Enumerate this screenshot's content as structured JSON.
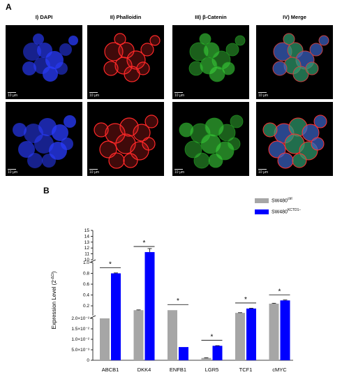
{
  "figure": {
    "panel_a_label": "A",
    "panel_b_label": "B",
    "columns": [
      {
        "header": "I) DAPI",
        "color": "#2a3cff"
      },
      {
        "header": "II) Phalloidin",
        "color": "#ff2828"
      },
      {
        "header": "III) β-Catenin",
        "color": "#3cd23c"
      },
      {
        "header": "IV) Merge",
        "color": "#46a0a0"
      }
    ],
    "scale_bar_label": "10 µm"
  },
  "chart_data": {
    "type": "bar",
    "ylabel_main": "Expression  Level (2",
    "ylabel_sup": "-ΔCt",
    "ylabel_tail": ")",
    "categories": [
      "ABCB1",
      "DKK4",
      "ENFB1",
      "LGR5",
      "TCF1",
      "cMYC"
    ],
    "series": [
      {
        "name": "SW480",
        "name_sup": "ctrl",
        "color": "#a6a6a6",
        "values": [
          0.02,
          0.12,
          0.12,
          0.0011,
          0.07,
          0.24
        ],
        "errors": [
          0,
          0.005,
          0,
          0.0001,
          0.004,
          0.008
        ]
      },
      {
        "name": "SW480",
        "name_sup": "KCTD1−",
        "color": "#0000ff",
        "values": [
          0.8,
          11.3,
          0.0063,
          0.0069,
          0.15,
          0.3
        ],
        "errors": [
          0.008,
          0.6,
          0,
          7e-05,
          0.006,
          0.008
        ]
      }
    ],
    "significance": [
      "*",
      "*",
      "*",
      "*",
      "*",
      "*"
    ],
    "segments": [
      {
        "range": [
          0,
          0.02
        ],
        "ticks": [
          "0",
          "5.0×10⁻³",
          "1.0×10⁻²",
          "1.5×10⁻²",
          "2.0×10⁻²"
        ]
      },
      {
        "range": [
          0.02,
          1.0
        ],
        "ticks": [
          "0.2",
          "0.4",
          "0.6",
          "0.8",
          "1.0"
        ]
      },
      {
        "range": [
          10,
          15
        ],
        "ticks": [
          "10",
          "11",
          "12",
          "13",
          "14",
          "15"
        ]
      }
    ]
  }
}
